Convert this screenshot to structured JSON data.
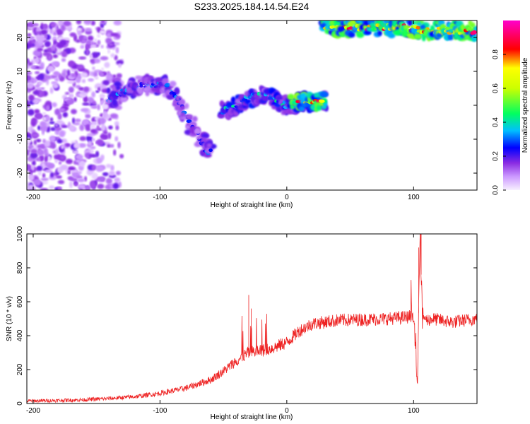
{
  "title": "S233.2025.184.14.54.E24",
  "chart_data": [
    {
      "type": "heatmap",
      "xlabel": "Height of straight line (km)",
      "ylabel": "Frequency (Hz)",
      "xlim": [
        -205,
        150
      ],
      "ylim": [
        -25,
        25
      ],
      "xticks": [
        -200,
        -100,
        0,
        100
      ],
      "yticks": [
        -20,
        -10,
        0,
        10,
        20
      ],
      "colorbar": {
        "label": "Normalized spectral amplitude",
        "range": [
          0,
          1
        ],
        "ticks": [
          "0.0",
          "0.2",
          "0.4",
          "0.6",
          "0.8"
        ],
        "colors": [
          "#f8f0ff",
          "#8a2be2",
          "#0000ff",
          "#00bfff",
          "#00ff00",
          "#ffff00",
          "#ff0000",
          "#ff00ff"
        ]
      },
      "features": [
        {
          "name": "broadband scattered returns",
          "x_range": [
            -205,
            -130
          ],
          "y_range": [
            -25,
            25
          ],
          "amplitude": 0.15
        },
        {
          "name": "descending trace",
          "points": [
            [
              -140,
              2
            ],
            [
              -125,
              5
            ],
            [
              -110,
              6
            ],
            [
              -95,
              6
            ],
            [
              -85,
              1
            ],
            [
              -75,
              -6
            ],
            [
              -65,
              -12
            ],
            [
              -60,
              -14
            ]
          ],
          "amplitude": 0.35
        },
        {
          "name": "second trace",
          "points": [
            [
              -50,
              -2
            ],
            [
              -40,
              0
            ],
            [
              -30,
              2
            ],
            [
              -20,
              3
            ],
            [
              -10,
              2
            ],
            [
              0,
              0
            ],
            [
              10,
              1
            ],
            [
              30,
              1
            ]
          ],
          "amplitude": 0.45
        },
        {
          "name": "strong return",
          "points": [
            [
              5,
              1
            ],
            [
              15,
              1
            ],
            [
              30,
              1
            ]
          ],
          "amplitude": 0.95
        },
        {
          "name": "top band",
          "points": [
            [
              30,
              23
            ],
            [
              60,
              23
            ],
            [
              90,
              23
            ],
            [
              110,
              22
            ],
            [
              150,
              22
            ]
          ],
          "amplitude": 0.95
        }
      ]
    },
    {
      "type": "line",
      "xlabel": "Height of straight line (km)",
      "ylabel": "SNR (10 * v/v)",
      "xlim": [
        -205,
        150
      ],
      "ylim": [
        0,
        1000
      ],
      "xticks": [
        -200,
        -100,
        0,
        100
      ],
      "yticks": [
        0,
        200,
        400,
        600,
        800,
        1000
      ],
      "color": "#ee2222",
      "x": [
        -205,
        -180,
        -160,
        -140,
        -120,
        -100,
        -80,
        -60,
        -50,
        -40,
        -30,
        -20,
        -10,
        0,
        10,
        20,
        30,
        40,
        60,
        80,
        95,
        100,
        103,
        105,
        107,
        110,
        115,
        130,
        150
      ],
      "y": [
        15,
        18,
        22,
        30,
        40,
        60,
        90,
        140,
        190,
        250,
        300,
        310,
        330,
        360,
        430,
        470,
        480,
        490,
        495,
        500,
        510,
        520,
        80,
        990,
        530,
        490,
        500,
        480,
        500
      ],
      "noise_amplitude": 30,
      "spikes": [
        {
          "x": -30,
          "y": 640
        },
        {
          "x": -28,
          "y": 560
        },
        {
          "x": 104,
          "y": 920
        },
        {
          "x": 106,
          "y": 1000
        }
      ]
    }
  ]
}
